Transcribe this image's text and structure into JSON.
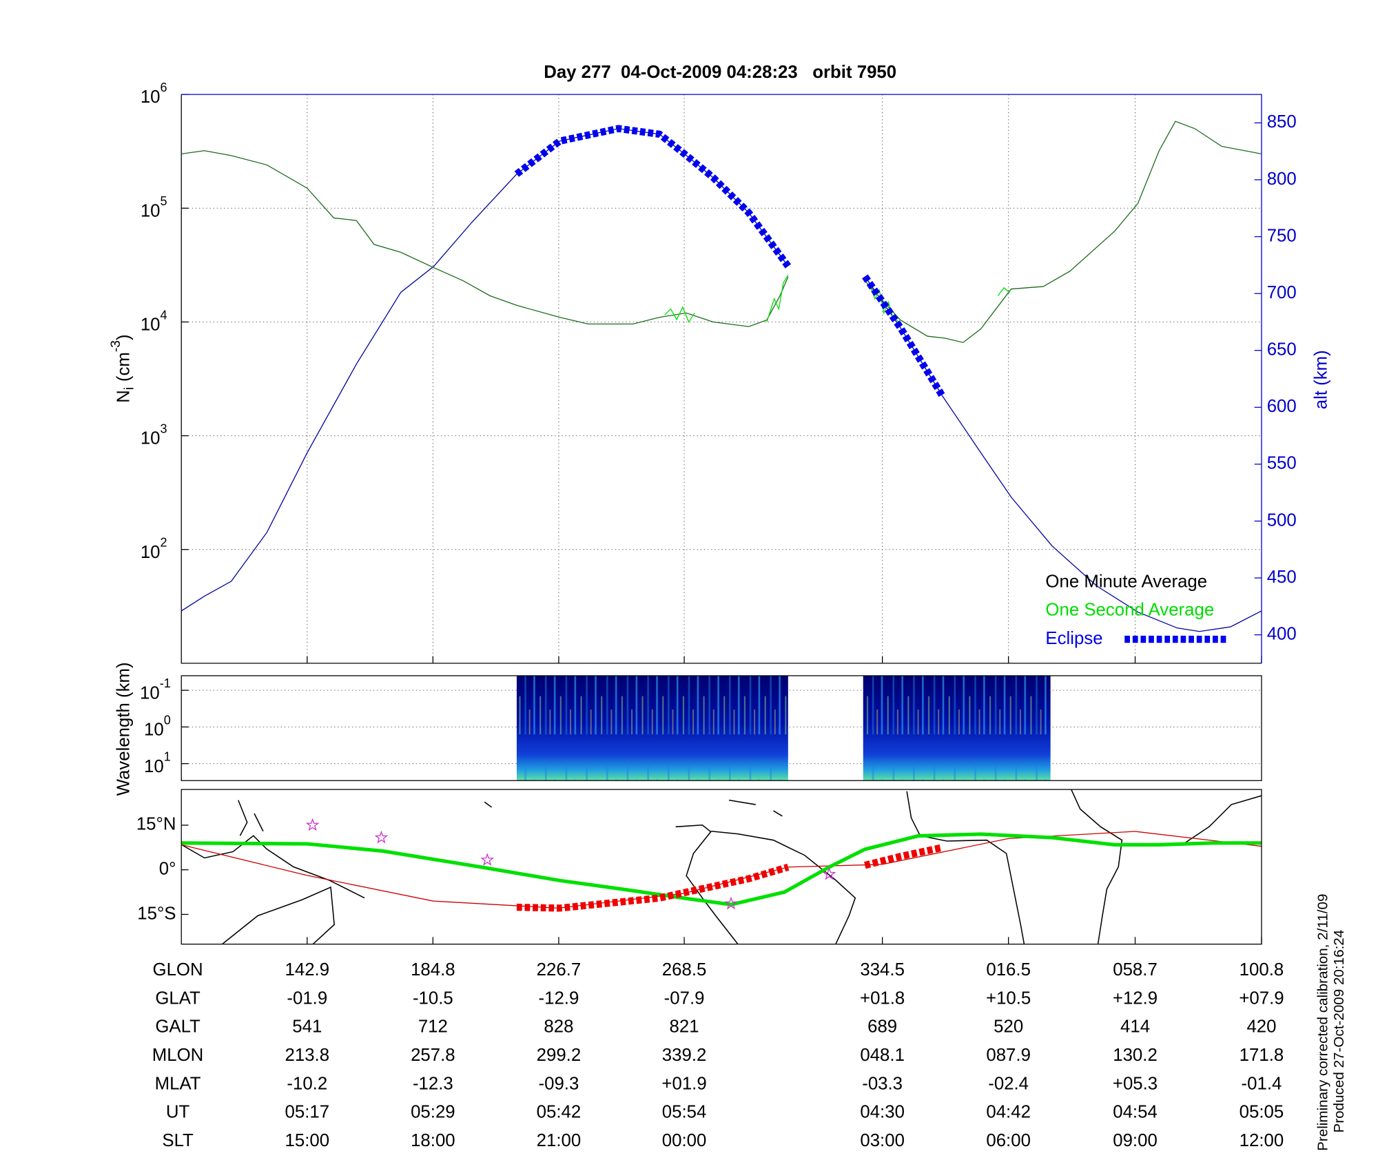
{
  "chart_data": [
    {
      "type": "line",
      "title": "Day 277  04-Oct-2009 04:28:23   orbit 7950",
      "ylabel": {
        "base": "N",
        "sub": "i",
        "unit": "(cm",
        "exp": "-3",
        "close": ")"
      },
      "y2label": "alt (km)",
      "ylog": true,
      "xlim": [
        101.0,
        460.8
      ],
      "xticks": [
        142.9,
        184.8,
        226.7,
        268.5,
        334.5,
        376.5,
        418.7,
        460.8
      ],
      "ylim": [
        10,
        1000000
      ],
      "yticks": [
        {
          "value": 100,
          "label": "10",
          "exp": "2"
        },
        {
          "value": 1000,
          "label": "10",
          "exp": "3"
        },
        {
          "value": 10000,
          "label": "10",
          "exp": "4"
        },
        {
          "value": 100000,
          "label": "10",
          "exp": "5"
        },
        {
          "value": 1000000,
          "label": "10",
          "exp": "6"
        }
      ],
      "y2lim": [
        375,
        875
      ],
      "y2ticks": [
        400,
        450,
        500,
        550,
        600,
        650,
        700,
        750,
        800,
        850
      ],
      "y2color": "#0000cc",
      "grid": true,
      "legend": "lower right",
      "series": [
        {
          "color": "#0000a0",
          "axis": "y2",
          "style": "line",
          "x": [
            101.0,
            108.7,
            117.6,
            129.5,
            142.9,
            159.3,
            174.1,
            185.1,
            197.9,
            212.7,
            227.0,
            246.6,
            260.3,
            268.9,
            278.1,
            290.0,
            303.1,
            null,
            328.7,
            340.5,
            354.5,
            367.3,
            377.4,
            391.1,
            405.9,
            419.6,
            432.7,
            440.1,
            450.5,
            460.8
          ],
          "values": [
            421,
            434,
            447,
            490,
            560,
            638,
            701,
            724,
            763,
            805,
            834,
            845,
            840,
            822,
            802,
            771,
            724,
            null,
            715,
            670,
            610,
            560,
            521,
            478,
            443,
            420,
            406,
            403,
            407,
            421
          ]
        },
        {
          "name": "One Minute Average",
          "color": "#1a6b1a",
          "legend_color": "#000000",
          "style": "line",
          "x": [
            101.0,
            108.7,
            117.6,
            129.5,
            142.9,
            151.8,
            159.3,
            165.2,
            174.1,
            185.1,
            194.9,
            203.8,
            212.7,
            227.0,
            236.5,
            251.4,
            260.3,
            269.2,
            278.1,
            290.0,
            296.0,
            300.4,
            303.1,
            null,
            328.7,
            334.6,
            340.5,
            349.5,
            355.4,
            361.4,
            367.3,
            377.4,
            388.1,
            397.0,
            411.9,
            419.6,
            426.7,
            432.1,
            438.6,
            447.5,
            460.8
          ],
          "values": [
            300000,
            320000,
            290000,
            240000,
            150000,
            82000,
            78000,
            48000,
            41000,
            30000,
            23000,
            17000,
            14000,
            11000,
            9600,
            9600,
            11000,
            12000,
            10000,
            9100,
            10400,
            17000,
            25000,
            null,
            23000,
            15400,
            10400,
            7500,
            7200,
            6600,
            8700,
            19500,
            20500,
            28000,
            63000,
            110000,
            320000,
            580000,
            500000,
            350000,
            300000
          ]
        },
        {
          "name": "One Second Average",
          "color": "#00dd00",
          "style": "line",
          "x": [
            262.0,
            264.0,
            266.0,
            268.0,
            270.0,
            272.0,
            null,
            296.0,
            298.5,
            300.0,
            301.5,
            303.1,
            null,
            330.0,
            332.0,
            333.5,
            335.0,
            336.5,
            338.0,
            340.0,
            null,
            373.0,
            375.0,
            377.0
          ],
          "values": [
            11500,
            13000,
            10500,
            13500,
            10000,
            12000,
            null,
            10000,
            16000,
            13000,
            22000,
            26000,
            null,
            22000,
            16000,
            19000,
            12000,
            15000,
            11000,
            10000,
            null,
            17000,
            20000,
            18000
          ]
        },
        {
          "name": "Eclipse",
          "color": "#0000ee",
          "axis": "y2",
          "style": "thick-dotted",
          "x": [
            212.7,
            227.0,
            246.6,
            260.3,
            268.9,
            278.1,
            290.0,
            303.1,
            null,
            328.7,
            340.5,
            354.5
          ],
          "values": [
            805,
            834,
            845,
            840,
            822,
            802,
            771,
            724,
            null,
            715,
            670,
            610
          ]
        }
      ]
    },
    {
      "type": "spectrogram",
      "ylabel": "Wavelength (km)",
      "ylog": true,
      "yinverted": true,
      "xlim": [
        101.0,
        460.8
      ],
      "ylim": [
        0.04,
        29
      ],
      "yticks": [
        {
          "value": 0.1,
          "label": "10",
          "exp": "-1"
        },
        {
          "value": 1,
          "label": "10",
          "exp": "0"
        },
        {
          "value": 10,
          "label": "10",
          "exp": "1"
        }
      ],
      "grid": true,
      "intervals": [
        [
          212.7,
          303.1
        ],
        [
          328.1,
          390.5
        ]
      ]
    },
    {
      "type": "map",
      "xlim": [
        101.0,
        460.8
      ],
      "xticks": [
        142.9,
        184.8,
        226.7,
        268.5,
        334.5,
        376.5,
        418.7,
        460.8
      ],
      "ylim": [
        -25,
        27
      ],
      "yticks": [
        {
          "value": 15,
          "label": "15°N"
        },
        {
          "value": 0,
          "label": "0°"
        },
        {
          "value": -15,
          "label": "15°S"
        }
      ],
      "series": [
        {
          "color": "#cc0000",
          "style": "line",
          "x": [
            101.0,
            142.9,
            184.8,
            226.7,
            268.5,
            303.1,
            334.5,
            376.5,
            418.7,
            460.8
          ],
          "values": [
            8.4,
            -1.9,
            -10.5,
            -12.9,
            -7.9,
            0.9,
            1.8,
            10.5,
            12.9,
            7.9
          ]
        },
        {
          "color": "#00e000",
          "style": "thick",
          "x": [
            101.0,
            142.9,
            168.2,
            200.9,
            227.0,
            248.4,
            268.9,
            284.1,
            301.9,
            316.8,
            328.7,
            346.5,
            367.3,
            391.1,
            411.9,
            426.7,
            444.6,
            460.8
          ],
          "values": [
            9.0,
            8.7,
            6.3,
            0.9,
            -3.6,
            -6.6,
            -9.6,
            -11.7,
            -7.5,
            0.9,
            6.9,
            11.4,
            12.0,
            10.8,
            8.4,
            8.4,
            9.0,
            9.0
          ]
        },
        {
          "color": "#ee0000",
          "style": "thick-dotted",
          "x": [
            212.7,
            227.0,
            260.3,
            290.0,
            303.1,
            null,
            328.7,
            340.5,
            354.5
          ],
          "values": [
            -12.6,
            -12.9,
            -9.5,
            -3.0,
            0.9,
            null,
            1.5,
            4.5,
            7.5
          ]
        },
        {
          "color": "#cc33cc",
          "style": "star",
          "x": [
            144.7,
            167.6,
            202.9,
            284.1,
            316.8
          ],
          "values": [
            15.0,
            10.8,
            3.3,
            -11.4,
            -1.5
          ]
        }
      ]
    }
  ],
  "table": {
    "rows": [
      {
        "label": "GLON",
        "cells": [
          "142.9",
          "184.8",
          "226.7",
          "268.5",
          "334.5",
          "016.5",
          "058.7",
          "100.8"
        ]
      },
      {
        "label": "GLAT",
        "cells": [
          "-01.9",
          "-10.5",
          "-12.9",
          "-07.9",
          "+01.8",
          "+10.5",
          "+12.9",
          "+07.9"
        ]
      },
      {
        "label": "GALT",
        "cells": [
          "541",
          "712",
          "828",
          "821",
          "689",
          "520",
          "414",
          "420"
        ]
      },
      {
        "label": "MLON",
        "cells": [
          "213.8",
          "257.8",
          "299.2",
          "339.2",
          "048.1",
          "087.9",
          "130.2",
          "171.8"
        ]
      },
      {
        "label": "MLAT",
        "cells": [
          "-10.2",
          "-12.3",
          "-09.3",
          "+01.9",
          "-03.3",
          "-02.4",
          "+05.3",
          "-01.4"
        ]
      },
      {
        "label": "UT",
        "cells": [
          "05:17",
          "05:29",
          "05:42",
          "05:54",
          "04:30",
          "04:42",
          "04:54",
          "05:05"
        ]
      },
      {
        "label": "SLT",
        "cells": [
          "15:00",
          "18:00",
          "21:00",
          "00:00",
          "03:00",
          "06:00",
          "09:00",
          "12:00"
        ]
      }
    ]
  },
  "notes": [
    "Preliminary corrected calibration, 2/11/09",
    "Produced 27-Oct-2009 20:16:24"
  ]
}
